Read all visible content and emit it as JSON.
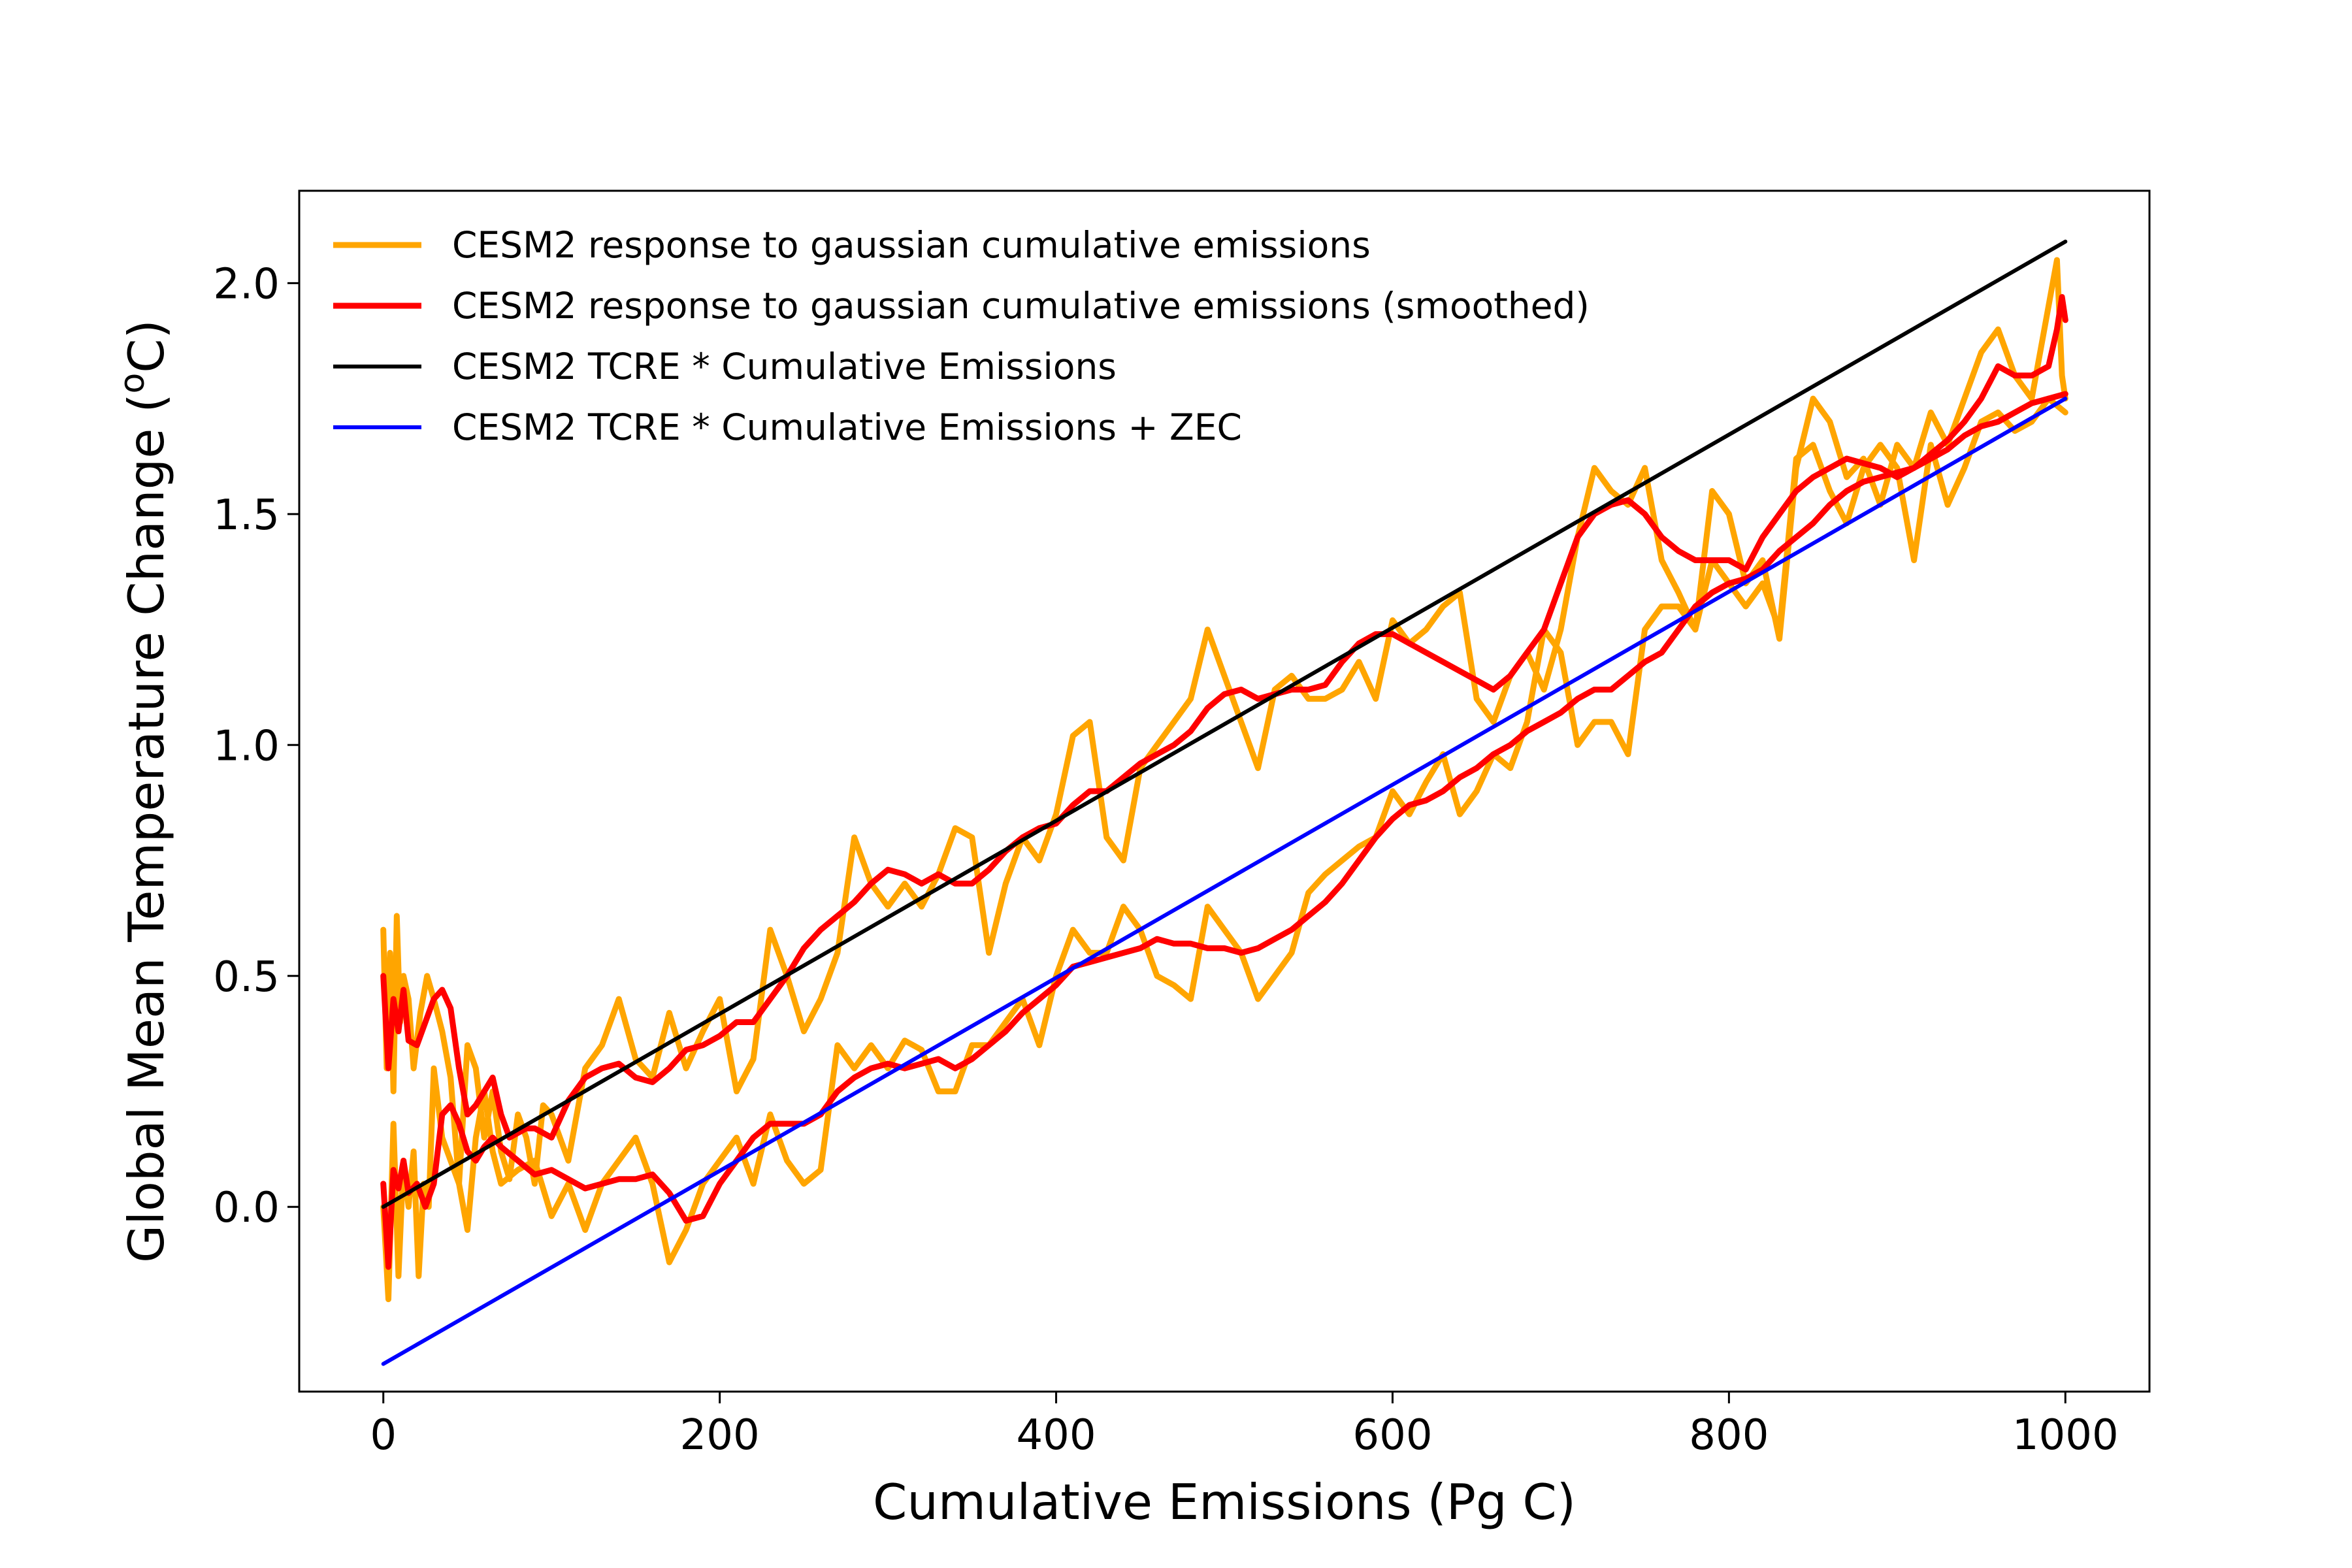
{
  "chart_data": {
    "type": "line",
    "xlabel": "Cumulative Emissions (Pg C)",
    "ylabel": "Global Mean Temperature Change (",
    "ylabel_sup": "o",
    "ylabel_end": "C)",
    "xlim": [
      -50,
      1050
    ],
    "ylim": [
      -0.4,
      2.2
    ],
    "xticks": [
      0,
      200,
      400,
      600,
      800,
      1000
    ],
    "xtick_labels": [
      "0",
      "200",
      "400",
      "600",
      "800",
      "1000"
    ],
    "yticks": [
      0.0,
      0.5,
      1.0,
      1.5,
      2.0
    ],
    "ytick_labels": [
      "0.0",
      "0.5",
      "1.0",
      "1.5",
      "2.0"
    ],
    "grid": false,
    "legend_position": "top-left",
    "series": [
      {
        "name": "CESM2 response to gaussian cumulative emissions",
        "color": "#ffa500",
        "segments": [
          {
            "x": [
              0,
              2,
              4,
              6,
              8,
              10,
              12,
              15,
              18,
              22,
              26,
              30,
              35,
              40,
              45,
              50,
              55,
              60,
              65,
              70,
              75,
              80,
              85,
              90,
              95,
              100,
              110,
              120,
              130,
              140,
              150,
              160,
              170,
              180,
              190,
              200,
              210,
              220,
              230,
              240,
              250,
              260,
              270,
              280,
              290,
              300,
              310,
              320,
              330,
              340,
              350,
              360,
              370,
              380,
              390,
              400,
              410,
              420,
              430,
              440,
              450,
              460,
              470,
              480,
              490,
              500,
              510,
              520,
              530,
              540,
              550,
              560,
              570,
              580,
              590,
              600,
              610,
              620,
              630,
              640,
              650,
              660,
              670,
              680,
              690,
              700,
              710,
              720,
              730,
              740,
              750,
              760,
              770,
              780,
              790,
              800,
              810,
              820,
              830,
              840,
              850,
              860,
              870,
              880,
              890,
              900,
              910,
              920,
              930,
              940,
              950,
              960,
              970,
              980,
              990,
              995,
              998,
              1000
            ],
            "y": [
              0.6,
              0.3,
              0.55,
              0.25,
              0.63,
              0.4,
              0.5,
              0.45,
              0.3,
              0.42,
              0.5,
              0.45,
              0.38,
              0.28,
              0.05,
              0.35,
              0.3,
              0.15,
              0.25,
              0.12,
              0.06,
              0.2,
              0.15,
              0.05,
              0.22,
              0.2,
              0.1,
              0.3,
              0.35,
              0.45,
              0.32,
              0.28,
              0.42,
              0.3,
              0.38,
              0.45,
              0.25,
              0.32,
              0.6,
              0.5,
              0.38,
              0.45,
              0.55,
              0.8,
              0.7,
              0.65,
              0.7,
              0.65,
              0.72,
              0.82,
              0.8,
              0.55,
              0.7,
              0.8,
              0.75,
              0.85,
              1.02,
              1.05,
              0.8,
              0.75,
              0.95,
              1.0,
              1.05,
              1.1,
              1.25,
              1.15,
              1.05,
              0.95,
              1.12,
              1.15,
              1.1,
              1.1,
              1.12,
              1.18,
              1.1,
              1.27,
              1.22,
              1.25,
              1.3,
              1.33,
              1.1,
              1.05,
              1.15,
              1.2,
              1.12,
              1.25,
              1.45,
              1.6,
              1.55,
              1.52,
              1.6,
              1.4,
              1.33,
              1.25,
              1.55,
              1.5,
              1.35,
              1.4,
              1.23,
              1.6,
              1.75,
              1.7,
              1.58,
              1.62,
              1.52,
              1.65,
              1.6,
              1.72,
              1.65,
              1.75,
              1.85,
              1.9,
              1.8,
              1.75,
              1.95,
              2.05,
              1.8,
              1.75
            ]
          },
          {
            "x": [
              0,
              3,
              6,
              9,
              12,
              15,
              18,
              21,
              24,
              27,
              30,
              35,
              40,
              45,
              50,
              55,
              60,
              65,
              70,
              80,
              90,
              100,
              110,
              120,
              130,
              140,
              150,
              160,
              170,
              180,
              190,
              200,
              210,
              220,
              230,
              240,
              250,
              260,
              270,
              280,
              290,
              300,
              310,
              320,
              330,
              340,
              350,
              360,
              370,
              380,
              390,
              400,
              410,
              420,
              430,
              440,
              450,
              460,
              470,
              480,
              490,
              500,
              510,
              520,
              530,
              540,
              550,
              560,
              570,
              580,
              590,
              600,
              610,
              620,
              630,
              640,
              650,
              660,
              670,
              680,
              690,
              700,
              710,
              720,
              730,
              740,
              750,
              760,
              770,
              780,
              790,
              800,
              810,
              820,
              830,
              840,
              850,
              860,
              870,
              880,
              890,
              900,
              910,
              920,
              930,
              940,
              950,
              960,
              970,
              980,
              990,
              1000
            ],
            "y": [
              0.0,
              -0.2,
              0.18,
              -0.15,
              0.1,
              0.0,
              0.12,
              -0.15,
              0.05,
              0.0,
              0.3,
              0.15,
              0.1,
              0.05,
              -0.05,
              0.15,
              0.25,
              0.12,
              0.05,
              0.08,
              0.1,
              -0.02,
              0.05,
              -0.05,
              0.05,
              0.1,
              0.15,
              0.05,
              -0.12,
              -0.05,
              0.05,
              0.1,
              0.15,
              0.05,
              0.2,
              0.1,
              0.05,
              0.08,
              0.35,
              0.3,
              0.35,
              0.3,
              0.36,
              0.34,
              0.25,
              0.25,
              0.35,
              0.35,
              0.4,
              0.45,
              0.35,
              0.5,
              0.6,
              0.55,
              0.55,
              0.65,
              0.6,
              0.5,
              0.48,
              0.45,
              0.65,
              0.6,
              0.55,
              0.45,
              0.5,
              0.55,
              0.68,
              0.72,
              0.75,
              0.78,
              0.8,
              0.9,
              0.85,
              0.92,
              0.98,
              0.85,
              0.9,
              0.98,
              0.95,
              1.05,
              1.25,
              1.2,
              1.0,
              1.05,
              1.05,
              0.98,
              1.25,
              1.3,
              1.3,
              1.25,
              1.4,
              1.35,
              1.3,
              1.35,
              1.25,
              1.62,
              1.65,
              1.55,
              1.48,
              1.6,
              1.65,
              1.6,
              1.4,
              1.65,
              1.52,
              1.6,
              1.7,
              1.72,
              1.68,
              1.7,
              1.75,
              1.72
            ]
          }
        ]
      },
      {
        "name": "CESM2 response to gaussian cumulative emissions (smoothed)",
        "color": "#ff0000",
        "segments": [
          {
            "x": [
              0,
              3,
              6,
              9,
              12,
              15,
              20,
              25,
              30,
              35,
              40,
              45,
              50,
              55,
              60,
              65,
              70,
              75,
              80,
              85,
              90,
              100,
              110,
              120,
              130,
              140,
              150,
              160,
              170,
              180,
              190,
              200,
              210,
              220,
              230,
              240,
              250,
              260,
              270,
              280,
              290,
              300,
              310,
              320,
              330,
              340,
              350,
              360,
              370,
              380,
              390,
              400,
              410,
              420,
              430,
              440,
              450,
              460,
              470,
              480,
              490,
              500,
              510,
              520,
              530,
              540,
              550,
              560,
              570,
              580,
              590,
              600,
              610,
              620,
              630,
              640,
              650,
              660,
              670,
              680,
              690,
              700,
              710,
              720,
              730,
              740,
              750,
              760,
              770,
              780,
              790,
              800,
              810,
              820,
              830,
              840,
              850,
              860,
              870,
              880,
              890,
              900,
              910,
              920,
              930,
              940,
              950,
              960,
              970,
              980,
              990,
              995,
              998,
              1000
            ],
            "y": [
              0.5,
              0.3,
              0.45,
              0.38,
              0.47,
              0.36,
              0.35,
              0.4,
              0.45,
              0.47,
              0.43,
              0.3,
              0.2,
              0.22,
              0.25,
              0.28,
              0.2,
              0.15,
              0.16,
              0.17,
              0.17,
              0.15,
              0.23,
              0.28,
              0.3,
              0.31,
              0.28,
              0.27,
              0.3,
              0.34,
              0.35,
              0.37,
              0.4,
              0.4,
              0.45,
              0.5,
              0.56,
              0.6,
              0.63,
              0.66,
              0.7,
              0.73,
              0.72,
              0.7,
              0.72,
              0.7,
              0.7,
              0.73,
              0.77,
              0.8,
              0.82,
              0.83,
              0.87,
              0.9,
              0.9,
              0.93,
              0.96,
              0.98,
              1.0,
              1.03,
              1.08,
              1.11,
              1.12,
              1.1,
              1.11,
              1.12,
              1.12,
              1.13,
              1.18,
              1.22,
              1.24,
              1.24,
              1.22,
              1.2,
              1.18,
              1.16,
              1.14,
              1.12,
              1.15,
              1.2,
              1.25,
              1.35,
              1.45,
              1.5,
              1.52,
              1.53,
              1.5,
              1.45,
              1.42,
              1.4,
              1.4,
              1.4,
              1.38,
              1.45,
              1.5,
              1.55,
              1.58,
              1.6,
              1.62,
              1.61,
              1.6,
              1.58,
              1.6,
              1.63,
              1.66,
              1.7,
              1.75,
              1.82,
              1.8,
              1.8,
              1.82,
              1.9,
              1.97,
              1.92
            ]
          },
          {
            "x": [
              0,
              3,
              6,
              9,
              12,
              15,
              20,
              25,
              30,
              35,
              40,
              45,
              50,
              55,
              60,
              65,
              70,
              80,
              90,
              100,
              110,
              120,
              130,
              140,
              150,
              160,
              170,
              180,
              190,
              200,
              210,
              220,
              230,
              240,
              250,
              260,
              270,
              280,
              290,
              300,
              310,
              320,
              330,
              340,
              350,
              360,
              370,
              380,
              390,
              400,
              410,
              420,
              430,
              440,
              450,
              460,
              470,
              480,
              490,
              500,
              510,
              520,
              530,
              540,
              550,
              560,
              570,
              580,
              590,
              600,
              610,
              620,
              630,
              640,
              650,
              660,
              670,
              680,
              690,
              700,
              710,
              720,
              730,
              740,
              750,
              760,
              770,
              780,
              790,
              800,
              810,
              820,
              830,
              840,
              850,
              860,
              870,
              880,
              890,
              900,
              910,
              920,
              930,
              940,
              950,
              960,
              970,
              980,
              990,
              1000
            ],
            "y": [
              0.05,
              -0.13,
              0.08,
              0.04,
              0.1,
              0.03,
              0.05,
              0.0,
              0.05,
              0.2,
              0.22,
              0.18,
              0.12,
              0.1,
              0.13,
              0.15,
              0.13,
              0.1,
              0.07,
              0.08,
              0.06,
              0.04,
              0.05,
              0.06,
              0.06,
              0.07,
              0.03,
              -0.03,
              -0.02,
              0.05,
              0.1,
              0.15,
              0.18,
              0.18,
              0.18,
              0.2,
              0.25,
              0.28,
              0.3,
              0.31,
              0.3,
              0.31,
              0.32,
              0.3,
              0.32,
              0.35,
              0.38,
              0.42,
              0.45,
              0.48,
              0.52,
              0.53,
              0.54,
              0.55,
              0.56,
              0.58,
              0.57,
              0.57,
              0.56,
              0.56,
              0.55,
              0.56,
              0.58,
              0.6,
              0.63,
              0.66,
              0.7,
              0.75,
              0.8,
              0.84,
              0.87,
              0.88,
              0.9,
              0.93,
              0.95,
              0.98,
              1.0,
              1.03,
              1.05,
              1.07,
              1.1,
              1.12,
              1.12,
              1.15,
              1.18,
              1.2,
              1.25,
              1.3,
              1.33,
              1.35,
              1.36,
              1.38,
              1.42,
              1.45,
              1.48,
              1.52,
              1.55,
              1.57,
              1.58,
              1.59,
              1.6,
              1.62,
              1.64,
              1.67,
              1.69,
              1.7,
              1.72,
              1.74,
              1.75,
              1.76
            ]
          }
        ]
      },
      {
        "name": "CESM2 TCRE * Cumulative Emissions",
        "color": "#000000",
        "segments": [
          {
            "x": [
              0,
              1000
            ],
            "y": [
              0.0,
              2.09
            ]
          }
        ]
      },
      {
        "name": "CESM2 TCRE * Cumulative Emissions + ZEC",
        "color": "#0000ff",
        "segments": [
          {
            "x": [
              0,
              1000
            ],
            "y": [
              -0.34,
              1.75
            ]
          }
        ]
      }
    ]
  }
}
